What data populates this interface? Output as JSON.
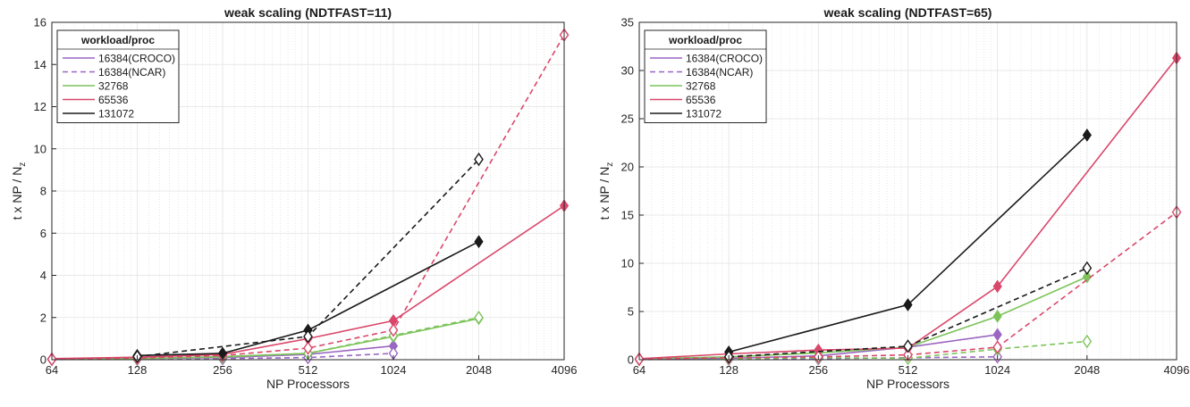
{
  "chart_data": [
    {
      "type": "line",
      "title": "weak scaling (NDTFAST=11)",
      "xlabel": "NP Processors",
      "ylabel_main": "t x NP / N",
      "ylabel_sub": "z",
      "xscale": "log2",
      "x_ticks": [
        64,
        128,
        256,
        512,
        1024,
        2048,
        4096
      ],
      "x_tick_labels": [
        "64",
        "128",
        "256",
        "512",
        "1024",
        "2048",
        "4096"
      ],
      "ylim": [
        0,
        16
      ],
      "y_ticks": [
        0,
        2,
        4,
        6,
        8,
        10,
        12,
        14,
        16
      ],
      "y_tick_labels": [
        "0",
        "2",
        "4",
        "6",
        "8",
        "10",
        "12",
        "14",
        "16"
      ],
      "grid": true,
      "legend_title": "workload/proc",
      "legend_position": "top-left",
      "series": [
        {
          "name": "16384(CROCO)",
          "color": "#9b66c2",
          "dash": false,
          "marker": "filled",
          "x": [
            64,
            128,
            256,
            512,
            1024
          ],
          "y": [
            0.02,
            0.05,
            0.1,
            0.25,
            0.65
          ]
        },
        {
          "name": "16384(NCAR)",
          "color": "#9b66c2",
          "dash": true,
          "marker": "open",
          "x": [
            64,
            128,
            256,
            512,
            1024
          ],
          "y": [
            0.01,
            0.02,
            0.05,
            0.1,
            0.3
          ]
        },
        {
          "name": "32768",
          "color": "#7cc45a",
          "dash": false,
          "marker": "filled",
          "x": [
            64,
            128,
            256,
            512,
            1024,
            2048
          ],
          "y": [
            0.02,
            0.05,
            0.15,
            0.3,
            1.1,
            1.95
          ]
        },
        {
          "name": "",
          "color": "#7cc45a",
          "dash": true,
          "marker": "open",
          "x": [
            64,
            128,
            256,
            512,
            1024,
            2048
          ],
          "y": [
            0.02,
            0.05,
            0.12,
            0.3,
            1.15,
            2.0
          ]
        },
        {
          "name": "65536",
          "color": "#d9476b",
          "dash": false,
          "marker": "filled",
          "x": [
            64,
            128,
            256,
            512,
            1024,
            4096
          ],
          "y": [
            0.05,
            0.12,
            0.25,
            1.0,
            1.85,
            7.3
          ]
        },
        {
          "name": "",
          "color": "#d9476b",
          "dash": true,
          "marker": "open",
          "x": [
            64,
            128,
            256,
            512,
            1024,
            4096
          ],
          "y": [
            0.02,
            0.08,
            0.2,
            0.55,
            1.4,
            15.4
          ]
        },
        {
          "name": "131072",
          "color": "#1a1a1a",
          "dash": false,
          "marker": "filled",
          "x": [
            128,
            256,
            512,
            2048
          ],
          "y": [
            0.2,
            0.3,
            1.4,
            5.6
          ]
        },
        {
          "name": "",
          "color": "#1a1a1a",
          "dash": true,
          "marker": "open",
          "x": [
            128,
            512,
            2048
          ],
          "y": [
            0.15,
            1.1,
            9.5
          ]
        }
      ]
    },
    {
      "type": "line",
      "title": "weak scaling (NDTFAST=65)",
      "xlabel": "NP Processors",
      "ylabel_main": "t x NP / N",
      "ylabel_sub": "z",
      "xscale": "log2",
      "x_ticks": [
        64,
        128,
        256,
        512,
        1024,
        2048,
        4096
      ],
      "x_tick_labels": [
        "64",
        "128",
        "256",
        "512",
        "1024",
        "2048",
        "4096"
      ],
      "ylim": [
        0,
        35
      ],
      "y_ticks": [
        0,
        5,
        10,
        15,
        20,
        25,
        30,
        35
      ],
      "y_tick_labels": [
        "0",
        "5",
        "10",
        "15",
        "20",
        "25",
        "30",
        "35"
      ],
      "grid": true,
      "legend_title": "workload/proc",
      "legend_position": "top-left",
      "series": [
        {
          "name": "16384(CROCO)",
          "color": "#9b66c2",
          "dash": false,
          "marker": "filled",
          "x": [
            64,
            128,
            256,
            512,
            1024
          ],
          "y": [
            0.05,
            0.15,
            0.4,
            1.3,
            2.6
          ]
        },
        {
          "name": "16384(NCAR)",
          "color": "#9b66c2",
          "dash": true,
          "marker": "open",
          "x": [
            64,
            128,
            256,
            512,
            1024
          ],
          "y": [
            0.02,
            0.05,
            0.1,
            0.2,
            0.3
          ]
        },
        {
          "name": "32768",
          "color": "#7cc45a",
          "dash": false,
          "marker": "filled",
          "x": [
            64,
            128,
            256,
            512,
            1024,
            2048
          ],
          "y": [
            0.1,
            0.3,
            0.7,
            1.3,
            4.5,
            8.6
          ]
        },
        {
          "name": "",
          "color": "#7cc45a",
          "dash": true,
          "marker": "open",
          "x": [
            64,
            128,
            256,
            512,
            1024,
            2048
          ],
          "y": [
            0.02,
            0.1,
            0.2,
            0.15,
            1.1,
            1.9
          ]
        },
        {
          "name": "65536",
          "color": "#d9476b",
          "dash": false,
          "marker": "filled",
          "x": [
            64,
            128,
            256,
            512,
            1024,
            4096
          ],
          "y": [
            0.1,
            0.6,
            1.0,
            1.2,
            7.6,
            31.3
          ]
        },
        {
          "name": "",
          "color": "#d9476b",
          "dash": true,
          "marker": "open",
          "x": [
            64,
            128,
            256,
            512,
            1024,
            4096
          ],
          "y": [
            0.05,
            0.2,
            0.3,
            0.5,
            1.3,
            15.3
          ]
        },
        {
          "name": "131072",
          "color": "#1a1a1a",
          "dash": false,
          "marker": "filled",
          "x": [
            128,
            512,
            2048
          ],
          "y": [
            0.8,
            5.7,
            23.3
          ]
        },
        {
          "name": "",
          "color": "#1a1a1a",
          "dash": true,
          "marker": "open",
          "x": [
            128,
            512,
            2048
          ],
          "y": [
            0.3,
            1.4,
            9.5
          ]
        }
      ]
    }
  ]
}
